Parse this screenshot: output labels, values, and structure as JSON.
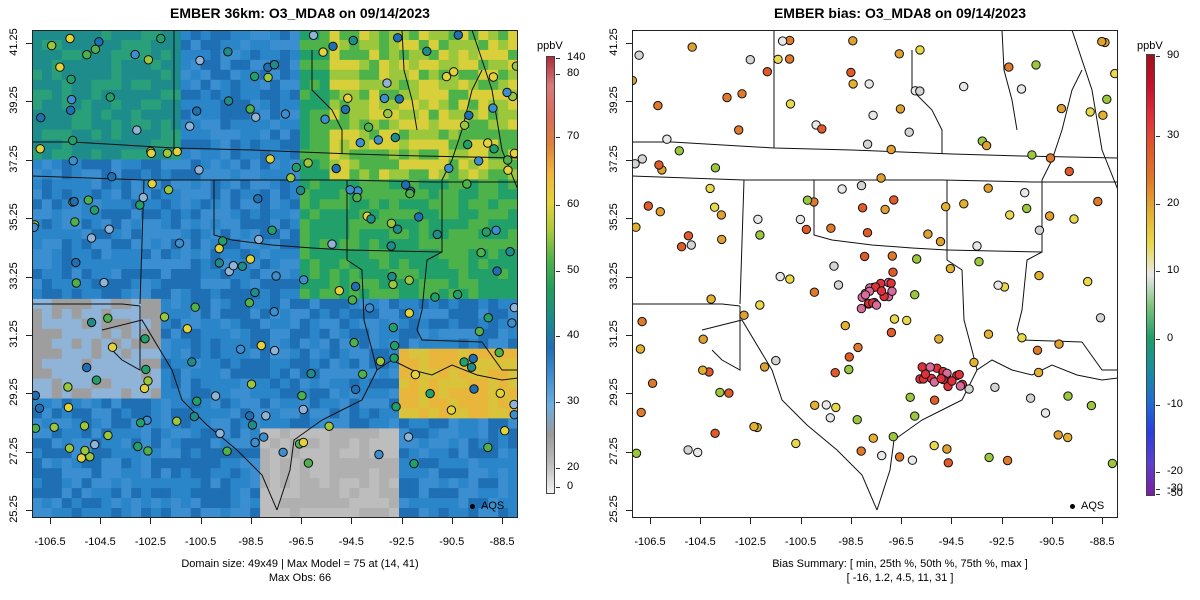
{
  "left_panel": {
    "title": "EMBER 36km: O3_MDA8 on 09/14/2023",
    "caption_line1": "Domain size: 49x49 | Max Model = 75 at (14, 41)",
    "caption_line2": "Max Obs: 66",
    "legend_label": "AQS",
    "colorbar": {
      "unit": "ppbV",
      "ticks": [
        "140",
        "80",
        "70",
        "60",
        "50",
        "40",
        "30",
        "20",
        "0"
      ],
      "colors": [
        "#f2f2f2",
        "#bdbdbd",
        "#9a9a9a",
        "#6eaee0",
        "#3f8fd0",
        "#1f6fb4",
        "#1b8c8c",
        "#1f9e5a",
        "#4db24a",
        "#a8c93a",
        "#e3d23a",
        "#f2b43a",
        "#e0803a",
        "#d86c5a",
        "#d97a7a",
        "#b02a3a"
      ]
    }
  },
  "right_panel": {
    "title": "EMBER bias: O3_MDA8 on 09/14/2023",
    "caption_line1": "Bias Summary: [ min, 25th %, 50th %, 75th %, max ]",
    "caption_line2": "[ -16,   1.2,   4.5,   11,   31 ]",
    "legend_label": "AQS",
    "colorbar": {
      "unit": "ppbV",
      "ticks": [
        "90",
        "30",
        "20",
        "10",
        "0",
        "-10",
        "-20",
        "-30",
        "-50"
      ],
      "colors": [
        "#7a1fa2",
        "#5b3fd0",
        "#2a3ee0",
        "#1f6fd0",
        "#1b8c9c",
        "#1f9e6a",
        "#7ec27a",
        "#e8e8e8",
        "#e8d84a",
        "#e3b030",
        "#e07a2a",
        "#e05a2a",
        "#e0303a",
        "#c8102a",
        "#a01020"
      ]
    }
  },
  "map_axes": {
    "y_ticks": [
      "41.25",
      "39.25",
      "37.25",
      "35.25",
      "33.25",
      "31.25",
      "29.25",
      "27.25",
      "25.25"
    ],
    "x_ticks": [
      "-106.5",
      "-104.5",
      "-102.5",
      "-100.5",
      "-98.5",
      "-96.5",
      "-94.5",
      "-92.5",
      "-90.5",
      "-88.5"
    ]
  }
}
